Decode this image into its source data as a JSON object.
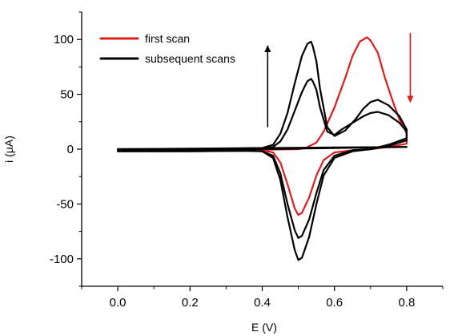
{
  "chart_data": {
    "type": "line",
    "xlabel": "E (V)",
    "ylabel": "i (μA)",
    "xlim": [
      -0.1,
      0.9
    ],
    "ylim": [
      -125,
      125
    ],
    "xticks": [
      0.0,
      0.2,
      0.4,
      0.6,
      0.8
    ],
    "xtick_labels": [
      "0.0",
      "0.2",
      "0.4",
      "0.6",
      "0.8"
    ],
    "yticks": [
      -100,
      -50,
      0,
      50,
      100
    ],
    "ytick_labels": [
      "-100",
      "-50",
      "0",
      "50",
      "100"
    ],
    "grid": false,
    "legend_position": "top-left",
    "legend": [
      {
        "label": "first scan",
        "color": "#dd1c1c"
      },
      {
        "label": "subsequent scans",
        "color": "#000000"
      }
    ],
    "series": [
      {
        "name": "first scan",
        "color": "#dd1c1c",
        "points": [
          [
            0.0,
            -2
          ],
          [
            0.1,
            -2
          ],
          [
            0.2,
            -2
          ],
          [
            0.3,
            -1.5
          ],
          [
            0.4,
            -1
          ],
          [
            0.43,
            -3
          ],
          [
            0.45,
            -12
          ],
          [
            0.47,
            -32
          ],
          [
            0.49,
            -54
          ],
          [
            0.5,
            -60
          ],
          [
            0.51,
            -58
          ],
          [
            0.53,
            -44
          ],
          [
            0.55,
            -24
          ],
          [
            0.57,
            -10
          ],
          [
            0.6,
            -3
          ],
          [
            0.65,
            -1
          ],
          [
            0.7,
            0
          ],
          [
            0.75,
            2
          ],
          [
            0.8,
            5
          ],
          [
            0.8,
            14
          ],
          [
            0.79,
            22
          ],
          [
            0.78,
            27
          ],
          [
            0.76,
            45
          ],
          [
            0.74,
            65
          ],
          [
            0.72,
            88
          ],
          [
            0.7,
            99
          ],
          [
            0.69,
            102
          ],
          [
            0.67,
            98
          ],
          [
            0.65,
            85
          ],
          [
            0.63,
            65
          ],
          [
            0.6,
            38
          ],
          [
            0.57,
            16
          ],
          [
            0.55,
            6
          ],
          [
            0.52,
            1
          ],
          [
            0.5,
            0
          ],
          [
            0.4,
            -0.5
          ],
          [
            0.2,
            -1
          ],
          [
            0.0,
            -2
          ]
        ]
      },
      {
        "name": "subsequent scans",
        "color": "#000000",
        "points": [
          [
            0.0,
            -2
          ],
          [
            0.2,
            -2
          ],
          [
            0.35,
            -1.5
          ],
          [
            0.4,
            -2
          ],
          [
            0.43,
            -8
          ],
          [
            0.45,
            -28
          ],
          [
            0.47,
            -62
          ],
          [
            0.49,
            -92
          ],
          [
            0.5,
            -101
          ],
          [
            0.51,
            -99
          ],
          [
            0.53,
            -80
          ],
          [
            0.55,
            -50
          ],
          [
            0.57,
            -24
          ],
          [
            0.6,
            -8
          ],
          [
            0.65,
            -2
          ],
          [
            0.7,
            0
          ],
          [
            0.75,
            4
          ],
          [
            0.8,
            10
          ],
          [
            0.8,
            18
          ],
          [
            0.78,
            30
          ],
          [
            0.75,
            40
          ],
          [
            0.72,
            45
          ],
          [
            0.7,
            43
          ],
          [
            0.68,
            37
          ],
          [
            0.66,
            28
          ],
          [
            0.63,
            17
          ],
          [
            0.6,
            12
          ],
          [
            0.58,
            20
          ],
          [
            0.56,
            55
          ],
          [
            0.55,
            80
          ],
          [
            0.54,
            94
          ],
          [
            0.535,
            98
          ],
          [
            0.525,
            96
          ],
          [
            0.51,
            85
          ],
          [
            0.49,
            60
          ],
          [
            0.47,
            33
          ],
          [
            0.45,
            14
          ],
          [
            0.43,
            4
          ],
          [
            0.4,
            1
          ],
          [
            0.3,
            0
          ],
          [
            0.2,
            -0.5
          ],
          [
            0.0,
            -1
          ]
        ]
      },
      {
        "name": "subsequent scans",
        "color": "#000000",
        "points": [
          [
            0.0,
            -1
          ],
          [
            0.2,
            -1.5
          ],
          [
            0.35,
            -1
          ],
          [
            0.4,
            -2
          ],
          [
            0.43,
            -6
          ],
          [
            0.45,
            -22
          ],
          [
            0.47,
            -50
          ],
          [
            0.49,
            -74
          ],
          [
            0.5,
            -81
          ],
          [
            0.51,
            -79
          ],
          [
            0.53,
            -64
          ],
          [
            0.55,
            -40
          ],
          [
            0.57,
            -19
          ],
          [
            0.6,
            -6
          ],
          [
            0.65,
            -1
          ],
          [
            0.7,
            0
          ],
          [
            0.75,
            3
          ],
          [
            0.8,
            8
          ],
          [
            0.8,
            16
          ],
          [
            0.78,
            24
          ],
          [
            0.75,
            31
          ],
          [
            0.72,
            34
          ],
          [
            0.7,
            33
          ],
          [
            0.68,
            30
          ],
          [
            0.65,
            24
          ],
          [
            0.62,
            18
          ],
          [
            0.6,
            13
          ],
          [
            0.58,
            16
          ],
          [
            0.56,
            38
          ],
          [
            0.55,
            54
          ],
          [
            0.54,
            62
          ],
          [
            0.535,
            64
          ],
          [
            0.525,
            62
          ],
          [
            0.51,
            52
          ],
          [
            0.49,
            35
          ],
          [
            0.47,
            18
          ],
          [
            0.45,
            7
          ],
          [
            0.43,
            2
          ],
          [
            0.4,
            1
          ],
          [
            0.3,
            0.5
          ],
          [
            0.2,
            0
          ],
          [
            0.0,
            0
          ]
        ]
      },
      {
        "name": "subsequent scans",
        "color": "#000000",
        "points": [
          [
            0.0,
            0
          ],
          [
            0.2,
            0.5
          ],
          [
            0.4,
            1
          ],
          [
            0.6,
            1.5
          ],
          [
            0.8,
            2
          ],
          [
            0.6,
            1
          ],
          [
            0.4,
            0
          ],
          [
            0.2,
            -0.5
          ],
          [
            0.0,
            -1
          ]
        ]
      }
    ],
    "annotations": [
      {
        "kind": "arrow",
        "direction": "up",
        "color": "#000000",
        "x": 0.415,
        "y_from": 20,
        "y_to": 95
      },
      {
        "kind": "arrow",
        "direction": "down",
        "color": "#dd1c1c",
        "x": 0.81,
        "y_from": 106,
        "y_to": 42
      }
    ]
  }
}
